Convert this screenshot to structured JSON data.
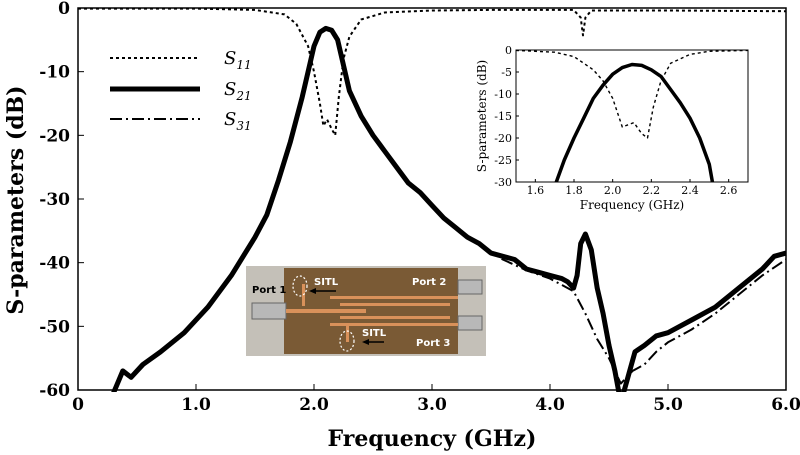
{
  "chart_data": [
    {
      "type": "line",
      "title": "",
      "xlabel": "Frequency (GHz)",
      "ylabel": "S-parameters (dB)",
      "xlim": [
        0,
        6.0
      ],
      "ylim": [
        -60,
        0
      ],
      "x_ticks": [
        "0",
        "1.0",
        "2.0",
        "3.0",
        "4.0",
        "5.0",
        "6.0"
      ],
      "y_ticks": [
        "0",
        "-10",
        "-20",
        "-30",
        "-40",
        "-50",
        "-60"
      ],
      "legend": {
        "position": "top-left",
        "entries": [
          {
            "base": "S",
            "sub": "11",
            "style": "dotted"
          },
          {
            "base": "S",
            "sub": "21",
            "style": "solid-thick"
          },
          {
            "base": "S",
            "sub": "31",
            "style": "dash-dot"
          }
        ]
      },
      "series": [
        {
          "name": "S11",
          "style": "dotted",
          "points": [
            [
              0,
              -0.1
            ],
            [
              1.0,
              -0.1
            ],
            [
              1.5,
              -0.3
            ],
            [
              1.75,
              -1.0
            ],
            [
              1.85,
              -2.5
            ],
            [
              1.95,
              -6
            ],
            [
              2.0,
              -10
            ],
            [
              2.05,
              -15
            ],
            [
              2.08,
              -18.5
            ],
            [
              2.11,
              -17.5
            ],
            [
              2.15,
              -19
            ],
            [
              2.18,
              -20
            ],
            [
              2.21,
              -14
            ],
            [
              2.25,
              -8
            ],
            [
              2.3,
              -4.5
            ],
            [
              2.4,
              -1.8
            ],
            [
              2.6,
              -0.7
            ],
            [
              3.0,
              -0.4
            ],
            [
              3.5,
              -0.3
            ],
            [
              4.0,
              -0.3
            ],
            [
              4.2,
              -0.3
            ],
            [
              4.26,
              -1.5
            ],
            [
              4.28,
              -4.3
            ],
            [
              4.3,
              -1.5
            ],
            [
              4.35,
              -0.4
            ],
            [
              5.0,
              -0.4
            ],
            [
              6.0,
              -0.5
            ]
          ]
        },
        {
          "name": "S21",
          "style": "solid-thick",
          "points": [
            [
              0.3,
              -60.5
            ],
            [
              0.38,
              -57
            ],
            [
              0.45,
              -58
            ],
            [
              0.55,
              -56
            ],
            [
              0.7,
              -54
            ],
            [
              0.9,
              -51
            ],
            [
              1.1,
              -47
            ],
            [
              1.3,
              -42
            ],
            [
              1.5,
              -36
            ],
            [
              1.6,
              -32.5
            ],
            [
              1.7,
              -27
            ],
            [
              1.8,
              -21
            ],
            [
              1.9,
              -14
            ],
            [
              1.95,
              -10
            ],
            [
              2.0,
              -6
            ],
            [
              2.05,
              -3.8
            ],
            [
              2.1,
              -3.2
            ],
            [
              2.15,
              -3.5
            ],
            [
              2.2,
              -5
            ],
            [
              2.25,
              -9
            ],
            [
              2.3,
              -13
            ],
            [
              2.4,
              -17
            ],
            [
              2.5,
              -20
            ],
            [
              2.6,
              -22.5
            ],
            [
              2.7,
              -25
            ],
            [
              2.8,
              -27.5
            ],
            [
              2.9,
              -29
            ],
            [
              3.0,
              -31
            ],
            [
              3.1,
              -33
            ],
            [
              3.2,
              -34.5
            ],
            [
              3.3,
              -36
            ],
            [
              3.4,
              -37
            ],
            [
              3.5,
              -38.5
            ],
            [
              3.6,
              -39
            ],
            [
              3.7,
              -39.5
            ],
            [
              3.8,
              -41
            ],
            [
              3.9,
              -41.5
            ],
            [
              4.0,
              -42
            ],
            [
              4.1,
              -42.5
            ],
            [
              4.15,
              -43
            ],
            [
              4.2,
              -44
            ],
            [
              4.23,
              -42
            ],
            [
              4.26,
              -37
            ],
            [
              4.3,
              -35.5
            ],
            [
              4.35,
              -38
            ],
            [
              4.4,
              -44
            ],
            [
              4.45,
              -48
            ],
            [
              4.5,
              -53
            ],
            [
              4.55,
              -57
            ],
            [
              4.6,
              -62
            ],
            [
              4.66,
              -58
            ],
            [
              4.72,
              -54
            ],
            [
              4.8,
              -53
            ],
            [
              4.9,
              -51.5
            ],
            [
              5.0,
              -51
            ],
            [
              5.2,
              -49
            ],
            [
              5.4,
              -47
            ],
            [
              5.6,
              -44
            ],
            [
              5.8,
              -41
            ],
            [
              5.9,
              -39
            ],
            [
              6.0,
              -38.5
            ]
          ]
        },
        {
          "name": "S31",
          "style": "dash-dot",
          "points": [
            [
              3.0,
              -31
            ],
            [
              3.2,
              -34.5
            ],
            [
              3.4,
              -37.2
            ],
            [
              3.6,
              -39.5
            ],
            [
              3.8,
              -41.2
            ],
            [
              4.0,
              -42.5
            ],
            [
              4.2,
              -44.5
            ],
            [
              4.3,
              -48
            ],
            [
              4.4,
              -52
            ],
            [
              4.5,
              -55
            ],
            [
              4.6,
              -59
            ],
            [
              4.7,
              -57
            ],
            [
              4.8,
              -56
            ],
            [
              4.85,
              -55
            ],
            [
              4.9,
              -54
            ],
            [
              5.0,
              -52.5
            ],
            [
              5.2,
              -50.5
            ],
            [
              5.4,
              -48
            ],
            [
              5.6,
              -45
            ],
            [
              5.8,
              -42
            ],
            [
              6.0,
              -39.5
            ]
          ]
        }
      ]
    },
    {
      "type": "line",
      "title": "",
      "xlabel": "Frequency (GHz)",
      "ylabel": "S-parameters (dB)",
      "xlim": [
        1.5,
        2.7
      ],
      "ylim": [
        -30,
        0
      ],
      "x_ticks": [
        "1.6",
        "1.8",
        "2.0",
        "2.2",
        "2.4",
        "2.6"
      ],
      "y_ticks": [
        "0",
        "-5",
        "-10",
        "-15",
        "-20",
        "-25",
        "-30"
      ],
      "series": [
        {
          "name": "S11",
          "style": "dotted",
          "points": [
            [
              1.5,
              -0.1
            ],
            [
              1.7,
              -0.5
            ],
            [
              1.8,
              -1.5
            ],
            [
              1.9,
              -4.5
            ],
            [
              1.95,
              -7
            ],
            [
              2.0,
              -11
            ],
            [
              2.05,
              -17.5
            ],
            [
              2.08,
              -17
            ],
            [
              2.11,
              -16.5
            ],
            [
              2.15,
              -19
            ],
            [
              2.18,
              -20
            ],
            [
              2.21,
              -13
            ],
            [
              2.25,
              -7
            ],
            [
              2.3,
              -3
            ],
            [
              2.4,
              -1
            ],
            [
              2.5,
              -0.3
            ],
            [
              2.7,
              -0.1
            ]
          ]
        },
        {
          "name": "S21",
          "style": "solid-thick",
          "points": [
            [
              1.7,
              -31
            ],
            [
              1.75,
              -25
            ],
            [
              1.8,
              -20
            ],
            [
              1.85,
              -15.5
            ],
            [
              1.9,
              -11
            ],
            [
              1.95,
              -8
            ],
            [
              2.0,
              -5.5
            ],
            [
              2.05,
              -4
            ],
            [
              2.1,
              -3.3
            ],
            [
              2.15,
              -3.5
            ],
            [
              2.2,
              -4.5
            ],
            [
              2.25,
              -6
            ],
            [
              2.3,
              -9
            ],
            [
              2.35,
              -12
            ],
            [
              2.4,
              -15.5
            ],
            [
              2.45,
              -20
            ],
            [
              2.5,
              -26
            ],
            [
              2.52,
              -31
            ]
          ]
        }
      ]
    }
  ],
  "photo": {
    "labels": {
      "port1": "Port 1",
      "port2": "Port 2",
      "port3": "Port 3",
      "sitl_top": "SITL",
      "sitl_bottom": "SITL"
    }
  }
}
